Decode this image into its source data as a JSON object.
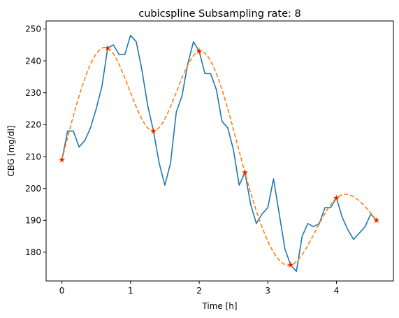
{
  "chart_data": {
    "type": "line",
    "title": "cubicspline Subsampling rate: 8",
    "xlabel": "Time [h]",
    "ylabel": "CBG [mg/dl]",
    "xlim": [
      -0.23,
      4.83
    ],
    "ylim": [
      171,
      252.5
    ],
    "xticks": [
      0,
      1,
      2,
      3,
      4
    ],
    "xtick_labels": [
      "0",
      "1",
      "2",
      "3",
      "4"
    ],
    "yticks": [
      180,
      190,
      200,
      210,
      220,
      230,
      240,
      250
    ],
    "ytick_labels": [
      "180",
      "190",
      "200",
      "210",
      "220",
      "230",
      "240",
      "250"
    ],
    "grid": false,
    "legend": "none",
    "colors": {
      "cgm": "#1f77b4",
      "spline": "#ff7f0e",
      "samples": "#ff0000"
    },
    "series": [
      {
        "kind": "cgm",
        "x": [
          0,
          0.0833,
          0.1667,
          0.25,
          0.3333,
          0.4167,
          0.5,
          0.5833,
          0.6667,
          0.75,
          0.8333,
          0.9167,
          1.0,
          1.0833,
          1.1667,
          1.25,
          1.3333,
          1.4167,
          1.5,
          1.5833,
          1.6667,
          1.75,
          1.8333,
          1.9167,
          2.0,
          2.0833,
          2.1667,
          2.25,
          2.3333,
          2.4167,
          2.5,
          2.5833,
          2.6667,
          2.75,
          2.8333,
          2.9167,
          3.0,
          3.0833,
          3.1667,
          3.25,
          3.3333,
          3.4167,
          3.5,
          3.5833,
          3.6667,
          3.75,
          3.8333,
          3.9167,
          4.0,
          4.0833,
          4.1667,
          4.25,
          4.3333,
          4.4167,
          4.5,
          4.5833
        ],
        "y": [
          209,
          218,
          218,
          213,
          215,
          219,
          225,
          232,
          244,
          245,
          242,
          242,
          248,
          246,
          237,
          226,
          218,
          208,
          201,
          208,
          224,
          229,
          239,
          246,
          243,
          236,
          236,
          231,
          221,
          219,
          212,
          201,
          205,
          195,
          189,
          192,
          194,
          203,
          192,
          181,
          176,
          174,
          185,
          189,
          188,
          189,
          194,
          194,
          197,
          191,
          187,
          184,
          186,
          188,
          192,
          190
        ]
      },
      {
        "kind": "spline",
        "x": [
          0,
          0.6667,
          1.3333,
          2.0,
          2.6667,
          3.3333,
          4.0,
          4.5833
        ],
        "y": [
          209,
          244,
          218,
          243,
          205,
          176,
          197,
          190
        ]
      },
      {
        "kind": "samples",
        "x": [
          0,
          0.6667,
          1.3333,
          2.0,
          2.6667,
          3.3333,
          4.0,
          4.5833
        ],
        "y": [
          209,
          244,
          218,
          243,
          205,
          176,
          197,
          190
        ]
      }
    ]
  }
}
